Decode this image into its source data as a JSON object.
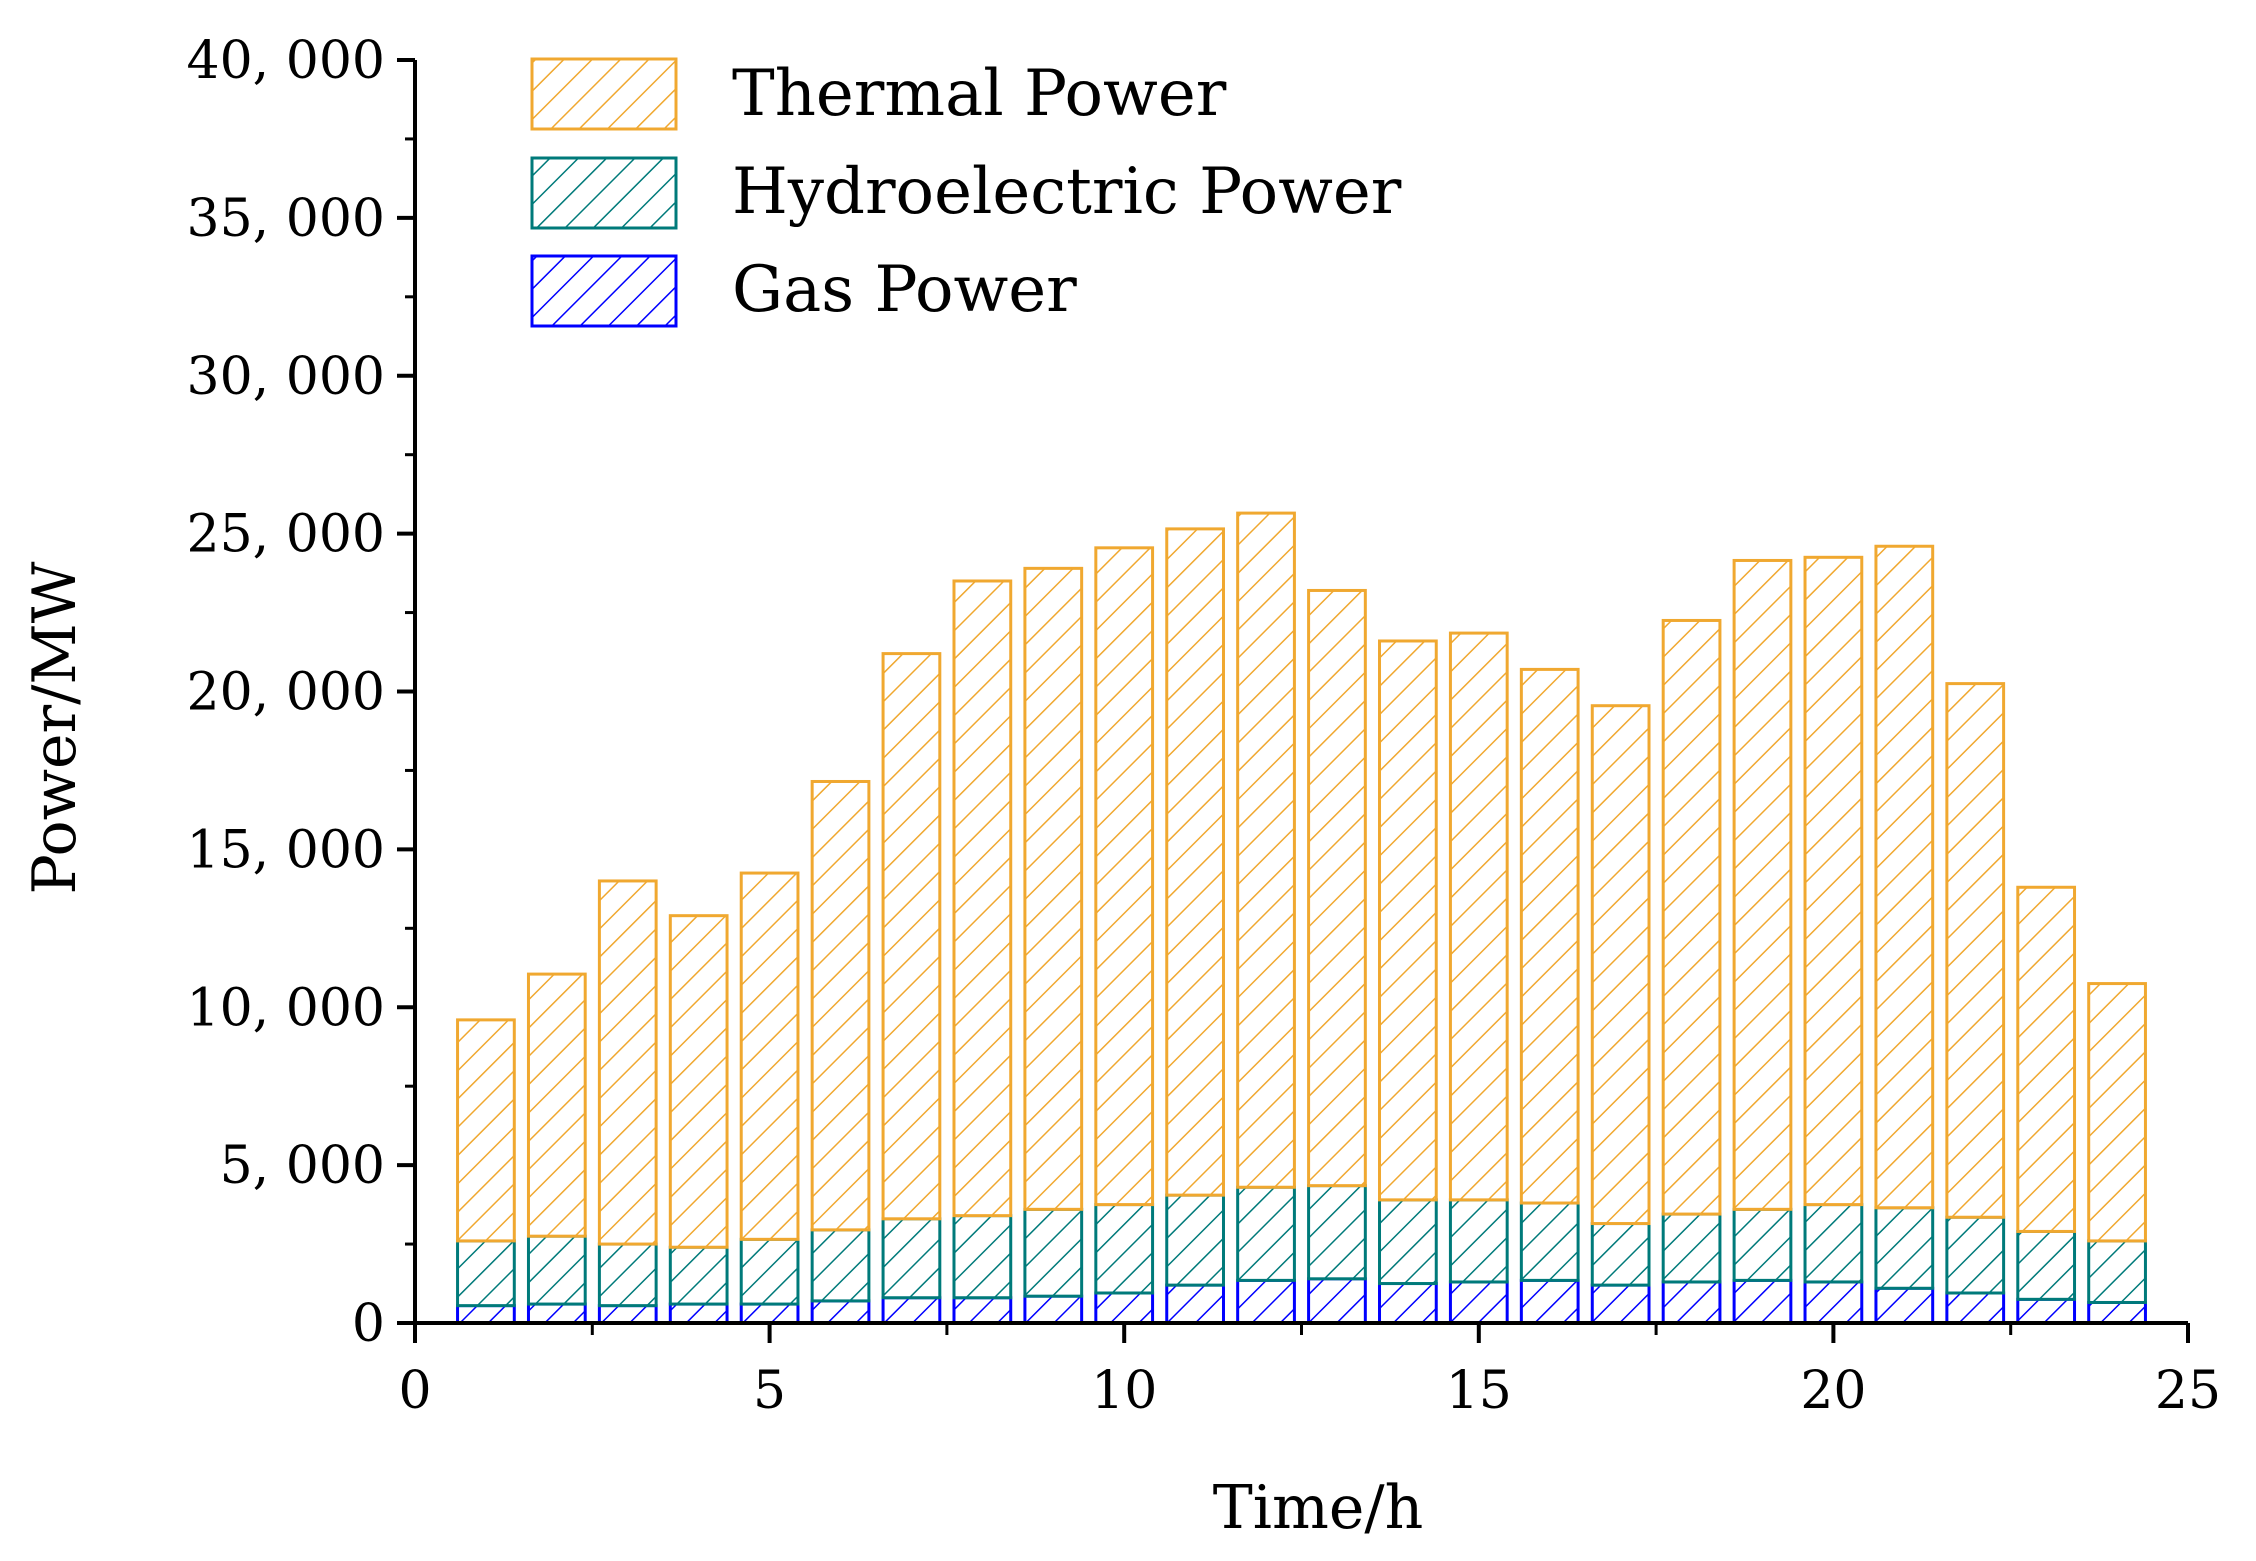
{
  "chart_data": {
    "type": "bar",
    "stacked": true,
    "title": "",
    "xlabel": "Time/h",
    "ylabel": "Power/MW",
    "xlim": [
      0,
      25
    ],
    "ylim": [
      0,
      40000
    ],
    "x_ticks": [
      0,
      5,
      10,
      15,
      20,
      25
    ],
    "x_tick_labels": [
      "0",
      "5",
      "10",
      "15",
      "20",
      "25"
    ],
    "y_ticks": [
      0,
      5000,
      10000,
      15000,
      20000,
      25000,
      30000,
      35000,
      40000
    ],
    "y_tick_labels": [
      "0",
      "5, 000",
      "10, 000",
      "15, 000",
      "20, 000",
      "25, 000",
      "30, 000",
      "35, 000",
      "40, 000"
    ],
    "legend_position": "top-left",
    "categories": [
      1,
      2,
      3,
      4,
      5,
      6,
      7,
      8,
      9,
      10,
      11,
      12,
      13,
      14,
      15,
      16,
      17,
      18,
      19,
      20,
      21,
      22,
      23,
      24
    ],
    "series": [
      {
        "name": "Gas Power",
        "color": "#0000FF",
        "values": [
          550,
          600,
          550,
          600,
          600,
          700,
          800,
          800,
          850,
          950,
          1200,
          1350,
          1400,
          1250,
          1300,
          1350,
          1200,
          1300,
          1350,
          1300,
          1100,
          950,
          750,
          650
        ]
      },
      {
        "name": "Hydroelectric Power",
        "color": "#007A7A",
        "values": [
          2050,
          2150,
          1950,
          1800,
          2050,
          2250,
          2500,
          2600,
          2750,
          2800,
          2850,
          2950,
          2950,
          2650,
          2600,
          2450,
          1950,
          2150,
          2250,
          2450,
          2550,
          2400,
          2150,
          1950
        ]
      },
      {
        "name": "Thermal Power",
        "color": "#F0A830",
        "values": [
          7000,
          8300,
          11500,
          10500,
          11600,
          14200,
          17900,
          20100,
          20300,
          20800,
          21100,
          21350,
          18850,
          17700,
          17950,
          16900,
          16400,
          18800,
          20550,
          20500,
          20950,
          16900,
          10900,
          8150
        ]
      }
    ],
    "legend": {
      "items": [
        "Thermal Power",
        "Hydroelectric Power",
        "Gas Power"
      ]
    }
  }
}
